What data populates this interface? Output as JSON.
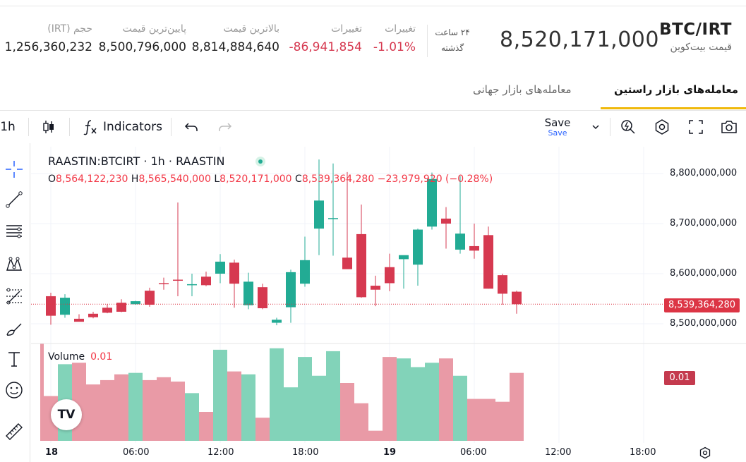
{
  "header": {
    "pair": "BTC/IRT",
    "pair_name": "قیمت بیت‌کوین",
    "last_price": "8,520,171,000",
    "period_line1": "۲۴ ساعت",
    "period_line2": "گذشته",
    "stats": [
      {
        "label": "تغییرات",
        "value": "-1.01%",
        "color": "red"
      },
      {
        "label": "تغییرات",
        "value": "-86,941,854",
        "color": "red"
      },
      {
        "label": "بالاترین قیمت",
        "value": "8,814,884,640",
        "color": "normal"
      },
      {
        "label": "پایین‌ترین قیمت",
        "value": "8,500,796,000",
        "color": "normal"
      },
      {
        "label": "حجم (IRT)",
        "value": "1,256,360,232",
        "color": "normal"
      }
    ]
  },
  "tabs": [
    {
      "label": "معامله‌های بازار راستین",
      "active": true
    },
    {
      "label": "معامله‌های بازار جهانی",
      "active": false
    }
  ],
  "toolbar": {
    "interval": "1h",
    "indicators_label": "Indicators",
    "save_label": "Save",
    "save_sub": "Save"
  },
  "legend": {
    "title": "RAASTIN:BTCIRT · 1h · RAASTIN",
    "o_label": "O",
    "o_value": "8,564,122,230",
    "h_label": "H",
    "h_value": "8,565,540,000",
    "l_label": "L",
    "l_value": "8,520,171,000",
    "c_label": "C",
    "c_value": "8,539,364,280",
    "change": "−23,979,920 (−0.28%)",
    "volume_label": "Volume",
    "volume_value": "0.01"
  },
  "logo_text": "TV",
  "price_axis": [
    "8,800,000,000",
    "8,700,000,000",
    "8,600,000,000",
    "8,500,000,000"
  ],
  "time_axis": [
    "18",
    "06:00",
    "12:00",
    "18:00",
    "19",
    "06:00",
    "12:00",
    "18:00"
  ],
  "last_price_tag": "8,539,364,280",
  "volume_tag": "0.01",
  "colors": {
    "up": "#22ab94",
    "down": "#d63950",
    "vol_up": "#82d3b9",
    "vol_down": "#e99aa6",
    "accent": "#f0b90b"
  },
  "chart_data": {
    "type": "candlestick",
    "interval": "1h",
    "ylim": [
      8480000000,
      8830000000
    ],
    "candles": [
      {
        "o": 8555,
        "h": 8562,
        "l": 8498,
        "c": 8516
      },
      {
        "o": 8518,
        "h": 8559,
        "l": 8512,
        "c": 8552
      },
      {
        "o": 8510,
        "h": 8519,
        "l": 8506,
        "c": 8504
      },
      {
        "o": 8520,
        "h": 8524,
        "l": 8511,
        "c": 8513
      },
      {
        "o": 8532,
        "h": 8539,
        "l": 8521,
        "c": 8522
      },
      {
        "o": 8542,
        "h": 8549,
        "l": 8523,
        "c": 8524
      },
      {
        "o": 8539,
        "h": 8546,
        "l": 8538,
        "c": 8545
      },
      {
        "o": 8566,
        "h": 8572,
        "l": 8534,
        "c": 8538
      },
      {
        "o": 8581,
        "h": 8592,
        "l": 8568,
        "c": 8580
      },
      {
        "o": 8588,
        "h": 8742,
        "l": 8555,
        "c": 8586
      },
      {
        "o": 8579,
        "h": 8600,
        "l": 8555,
        "c": 8579
      },
      {
        "o": 8594,
        "h": 8604,
        "l": 8575,
        "c": 8577
      },
      {
        "o": 8600,
        "h": 8639,
        "l": 8581,
        "c": 8624
      },
      {
        "o": 8622,
        "h": 8628,
        "l": 8532,
        "c": 8580
      },
      {
        "o": 8537,
        "h": 8602,
        "l": 8529,
        "c": 8584
      },
      {
        "o": 8573,
        "h": 8580,
        "l": 8529,
        "c": 8531
      },
      {
        "o": 8502,
        "h": 8512,
        "l": 8497,
        "c": 8508
      },
      {
        "o": 8533,
        "h": 8608,
        "l": 8502,
        "c": 8603
      },
      {
        "o": 8580,
        "h": 8674,
        "l": 8574,
        "c": 8627
      },
      {
        "o": 8690,
        "h": 8828,
        "l": 8637,
        "c": 8746
      },
      {
        "o": 8710,
        "h": 8820,
        "l": 8636,
        "c": 8711
      },
      {
        "o": 8632,
        "h": 8803,
        "l": 8629,
        "c": 8609
      },
      {
        "o": 8679,
        "h": 8738,
        "l": 8552,
        "c": 8553
      },
      {
        "o": 8576,
        "h": 8596,
        "l": 8535,
        "c": 8568
      },
      {
        "o": 8613,
        "h": 8640,
        "l": 8565,
        "c": 8581
      },
      {
        "o": 8629,
        "h": 8635,
        "l": 8570,
        "c": 8637
      },
      {
        "o": 8618,
        "h": 8690,
        "l": 8576,
        "c": 8688
      },
      {
        "o": 8694,
        "h": 8802,
        "l": 8688,
        "c": 8789
      },
      {
        "o": 8710,
        "h": 8733,
        "l": 8650,
        "c": 8700
      },
      {
        "o": 8648,
        "h": 8795,
        "l": 8640,
        "c": 8680
      },
      {
        "o": 8655,
        "h": 8700,
        "l": 8630,
        "c": 8646
      },
      {
        "o": 8677,
        "h": 8694,
        "l": 8570,
        "c": 8570
      },
      {
        "o": 8597,
        "h": 8600,
        "l": 8538,
        "c": 8560
      },
      {
        "o": 8564,
        "h": 8566,
        "l": 8520,
        "c": 8539
      }
    ],
    "volumes": [
      0.31,
      0.53,
      0.54,
      0.39,
      0.42,
      0.46,
      0.47,
      0.42,
      0.44,
      0.41,
      0.33,
      0.2,
      0.63,
      0.48,
      0.46,
      0.16,
      0.64,
      0.37,
      0.58,
      0.45,
      0.62,
      0.4,
      0.26,
      0.07,
      0.58,
      0.57,
      0.51,
      0.54,
      0.57,
      0.45,
      0.29,
      0.29,
      0.27,
      0.47
    ]
  }
}
